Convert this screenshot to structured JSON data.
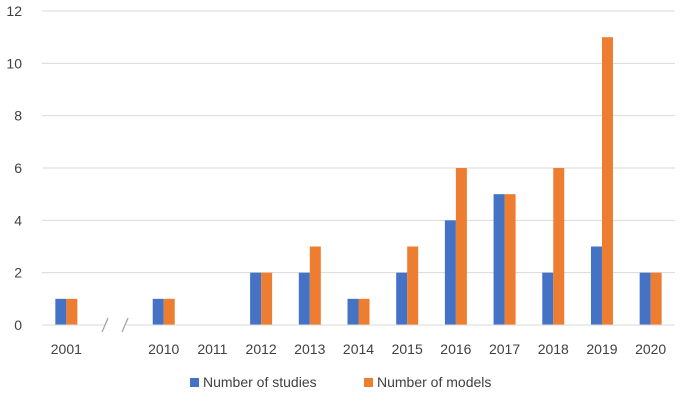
{
  "chart_data": {
    "type": "bar",
    "categories": [
      "2001",
      "",
      "2010",
      "2011",
      "2012",
      "2013",
      "2014",
      "2015",
      "2016",
      "2017",
      "2018",
      "2019",
      "2020"
    ],
    "series": [
      {
        "name": "Number of studies",
        "values": [
          1,
          null,
          1,
          0,
          2,
          2,
          1,
          2,
          4,
          5,
          2,
          3,
          2
        ],
        "color": "#4472C4"
      },
      {
        "name": "Number of models",
        "values": [
          1,
          null,
          1,
          0,
          2,
          3,
          1,
          3,
          6,
          5,
          6,
          11,
          2
        ],
        "color": "#ED7D31"
      }
    ],
    "title": "",
    "xlabel": "",
    "ylabel": "",
    "ylim": [
      0,
      12
    ],
    "yticks": [
      0,
      2,
      4,
      6,
      8,
      10,
      12
    ],
    "grid": true,
    "legend_position": "bottom",
    "axis_break": "between 2001 and 2010",
    "gridline_color": "#D9D9D9"
  }
}
